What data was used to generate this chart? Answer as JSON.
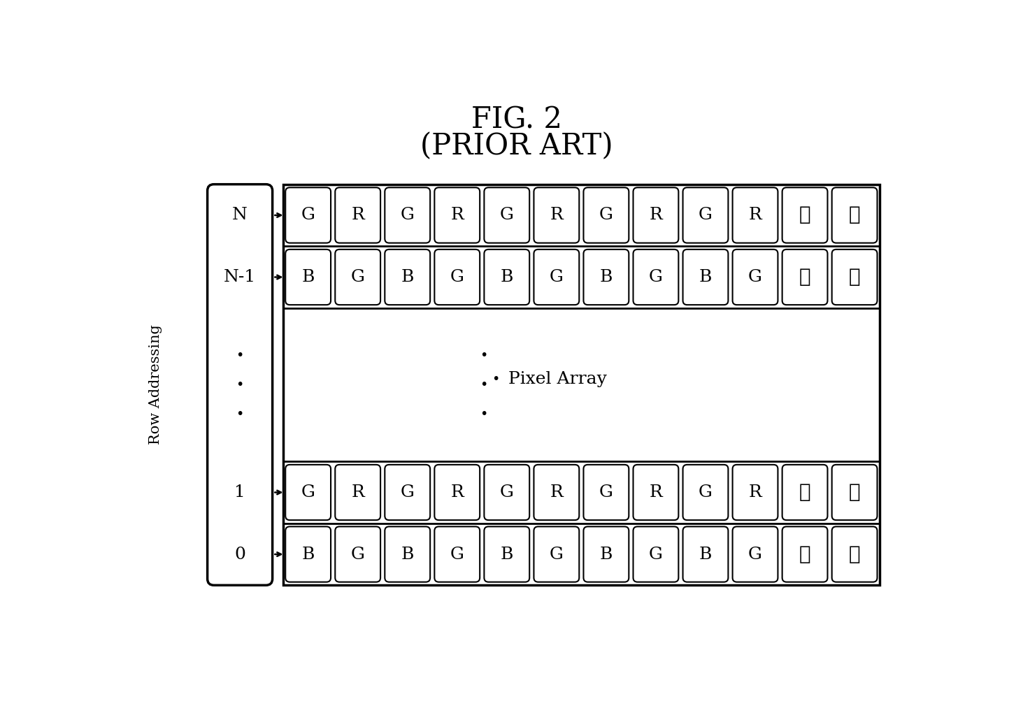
{
  "title_line1": "FIG. 2",
  "title_line2": "(PRIOR ART)",
  "title_fontsize": 30,
  "title_font": "DejaVu Serif",
  "bg_color": "#ffffff",
  "row_N_labels": [
    "G",
    "R",
    "G",
    "R",
    "G",
    "R",
    "G",
    "R",
    "G",
    "R",
    "...",
    "..."
  ],
  "row_N1_labels": [
    "B",
    "G",
    "B",
    "G",
    "B",
    "G",
    "B",
    "G",
    "B",
    "G",
    "...",
    "..."
  ],
  "row_1_labels": [
    "G",
    "R",
    "G",
    "R",
    "G",
    "R",
    "G",
    "R",
    "G",
    "R",
    "...",
    "..."
  ],
  "row_0_labels": [
    "B",
    "G",
    "B",
    "G",
    "B",
    "G",
    "B",
    "G",
    "B",
    "G",
    "...",
    "..."
  ],
  "row_names": [
    "N",
    "N-1",
    "1",
    "0"
  ],
  "pixel_array_text": "Pixel Array",
  "row_addressing_text": "Row Addressing",
  "label_fontsize": 18,
  "cell_fontsize": 18,
  "dots_fontsize": 22,
  "ra_fontsize": 15
}
